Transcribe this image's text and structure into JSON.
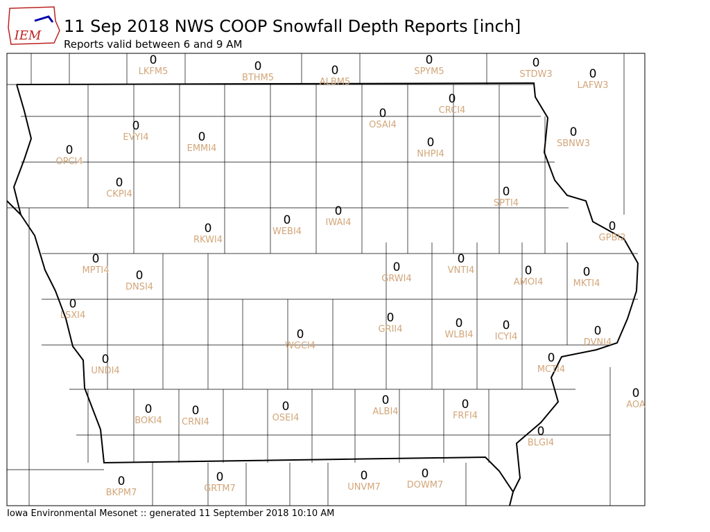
{
  "logo_text": "IEM",
  "title": "11 Sep 2018 NWS COOP Snowfall Depth Reports [inch]",
  "subtitle": "Reports valid between 6 and 9 AM",
  "footer": "Iowa Environmental Mesonet :: generated 11 September 2018 10:10 AM",
  "stations": [
    {
      "id": "LKFM5",
      "value": 0
    },
    {
      "id": "BTHM5",
      "value": 0
    },
    {
      "id": "ALBM5",
      "value": 0
    },
    {
      "id": "SPYM5",
      "value": 0
    },
    {
      "id": "STDW3",
      "value": 0
    },
    {
      "id": "LAFW3",
      "value": 0
    },
    {
      "id": "CRCI4",
      "value": 0
    },
    {
      "id": "OSAI4",
      "value": 0
    },
    {
      "id": "EVYI4",
      "value": 0
    },
    {
      "id": "EMMI4",
      "value": 0
    },
    {
      "id": "OPCI4",
      "value": 0
    },
    {
      "id": "NHPI4",
      "value": 0
    },
    {
      "id": "SBNW3",
      "value": 0
    },
    {
      "id": "CKPI4",
      "value": 0
    },
    {
      "id": "SPTI4",
      "value": 0
    },
    {
      "id": "IWAI4",
      "value": 0
    },
    {
      "id": "WEBI4",
      "value": 0
    },
    {
      "id": "RKWI4",
      "value": 0
    },
    {
      "id": "GPBI2",
      "value": 0
    },
    {
      "id": "MPTI4",
      "value": 0
    },
    {
      "id": "GRWI4",
      "value": 0
    },
    {
      "id": "VNTI4",
      "value": 0
    },
    {
      "id": "AMOI4",
      "value": 0
    },
    {
      "id": "MKTI4",
      "value": 0
    },
    {
      "id": "DNSI4",
      "value": 0
    },
    {
      "id": "LSXI4",
      "value": 0
    },
    {
      "id": "GRII4",
      "value": 0
    },
    {
      "id": "WLBI4",
      "value": 0
    },
    {
      "id": "ICYI4",
      "value": 0
    },
    {
      "id": "DVNI4",
      "value": 0
    },
    {
      "id": "WGCI4",
      "value": 0
    },
    {
      "id": "MCTI4",
      "value": 0
    },
    {
      "id": "UNDI4",
      "value": 0
    },
    {
      "id": "AOA",
      "value": 0
    },
    {
      "id": "ALBI4",
      "value": 0
    },
    {
      "id": "FRFI4",
      "value": 0
    },
    {
      "id": "BOKI4",
      "value": 0
    },
    {
      "id": "CRNI4",
      "value": 0
    },
    {
      "id": "OSEI4",
      "value": 0
    },
    {
      "id": "BLGI4",
      "value": 0
    },
    {
      "id": "BKPM7",
      "value": 0
    },
    {
      "id": "GRTM7",
      "value": 0
    },
    {
      "id": "UNVM7",
      "value": 0
    },
    {
      "id": "DOWM7",
      "value": 0
    }
  ]
}
